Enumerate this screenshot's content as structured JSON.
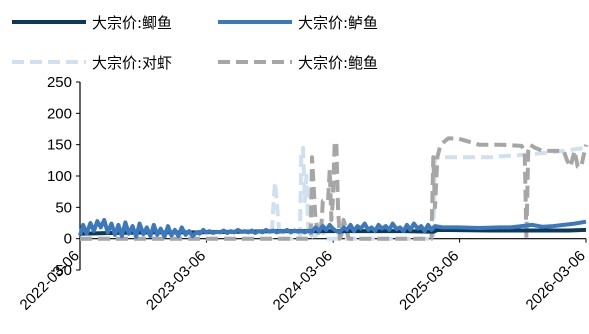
{
  "chart_data": {
    "type": "line",
    "title": "",
    "xlabel": "",
    "ylabel": "",
    "ylim": [
      -50,
      250
    ],
    "yticks": [
      -50,
      0,
      50,
      100,
      150,
      200,
      250
    ],
    "xlim": [
      "2022-03-06",
      "2026-03-06"
    ],
    "xticks": [
      "2022-03-06",
      "2023-03-06",
      "2024-03-06",
      "2025-03-06",
      "2026-03-06"
    ],
    "grid": false,
    "legend_position": "top",
    "series": [
      {
        "name": "大宗价:鲫鱼",
        "color": "#0d3b57",
        "style": "solid",
        "x": [
          "2022-03-06",
          "2022-06-01",
          "2022-10-01",
          "2023-02-01",
          "2023-06-01",
          "2023-10-01",
          "2024-01-15",
          "2024-06-01",
          "2024-10-01",
          "2024-12-20",
          "2025-01-01",
          "2025-06-01",
          "2025-10-01",
          "2026-01-15",
          "2026-03-06"
        ],
        "y": [
          8,
          9,
          10,
          10,
          11,
          12,
          12,
          12,
          12,
          11,
          14,
          13,
          13,
          13,
          14
        ]
      },
      {
        "name": "大宗价:鲈鱼",
        "color": "#3b78be",
        "style": "solid",
        "x": [
          "2022-03-06",
          "2022-03-15",
          "2022-03-25",
          "2022-04-05",
          "2022-04-15",
          "2022-04-25",
          "2022-05-05",
          "2022-05-15",
          "2022-05-25",
          "2022-06-05",
          "2022-06-15",
          "2022-06-25",
          "2022-07-05",
          "2022-07-15",
          "2022-07-25",
          "2022-08-05",
          "2022-08-15",
          "2022-08-25",
          "2022-09-05",
          "2022-09-15",
          "2022-09-25",
          "2022-10-05",
          "2022-10-15",
          "2022-10-25",
          "2022-11-05",
          "2022-11-15",
          "2022-11-25",
          "2022-12-05",
          "2022-12-15",
          "2022-12-25",
          "2023-01-05",
          "2023-01-15",
          "2023-01-25",
          "2023-02-05",
          "2023-02-15",
          "2023-02-25",
          "2023-03-05",
          "2023-03-15",
          "2023-03-25",
          "2023-04-05",
          "2023-04-15",
          "2023-04-25",
          "2023-05-05",
          "2023-05-15",
          "2023-05-25",
          "2023-06-05",
          "2023-06-15",
          "2023-06-25",
          "2023-07-05",
          "2023-07-15",
          "2023-07-25",
          "2023-08-05",
          "2023-08-15",
          "2023-08-25",
          "2023-09-05",
          "2023-09-15",
          "2023-09-25",
          "2023-10-05",
          "2023-10-15",
          "2023-10-25",
          "2023-11-05",
          "2023-11-15",
          "2023-11-25",
          "2023-12-05",
          "2023-12-15",
          "2023-12-25",
          "2024-01-05",
          "2024-01-15",
          "2024-01-25",
          "2024-02-05",
          "2024-02-15",
          "2024-02-25",
          "2024-03-05",
          "2024-03-15",
          "2024-03-25",
          "2024-04-05",
          "2024-04-15",
          "2024-04-25",
          "2024-05-05",
          "2024-05-15",
          "2024-05-25",
          "2024-06-05",
          "2024-06-15",
          "2024-06-25",
          "2024-07-05",
          "2024-07-15",
          "2024-07-25",
          "2024-08-05",
          "2024-08-15",
          "2024-08-25",
          "2024-09-05",
          "2024-09-15",
          "2024-09-25",
          "2024-10-05",
          "2024-10-15",
          "2024-10-25",
          "2024-11-05",
          "2024-11-15",
          "2024-11-25",
          "2024-12-05",
          "2024-12-15",
          "2024-12-25",
          "2025-01-15",
          "2025-03-01",
          "2025-05-01",
          "2025-07-01",
          "2025-08-01",
          "2025-09-01",
          "2025-10-01",
          "2025-11-01",
          "2025-12-01",
          "2026-01-01",
          "2026-02-01",
          "2026-03-06"
        ],
        "y": [
          5,
          22,
          8,
          25,
          12,
          28,
          18,
          30,
          10,
          24,
          6,
          22,
          4,
          26,
          8,
          20,
          3,
          24,
          7,
          18,
          4,
          22,
          6,
          16,
          3,
          20,
          5,
          14,
          4,
          18,
          6,
          12,
          4,
          10,
          8,
          14,
          10,
          12,
          9,
          11,
          10,
          13,
          9,
          12,
          10,
          14,
          11,
          12,
          10,
          13,
          9,
          12,
          10,
          14,
          11,
          13,
          10,
          12,
          11,
          14,
          10,
          13,
          11,
          12,
          10,
          13,
          11,
          18,
          12,
          20,
          14,
          22,
          16,
          12,
          10,
          18,
          14,
          22,
          12,
          20,
          16,
          24,
          14,
          18,
          12,
          22,
          16,
          20,
          14,
          24,
          15,
          18,
          12,
          22,
          14,
          24,
          16,
          20,
          12,
          22,
          14,
          20,
          18,
          18,
          17,
          18,
          18,
          20,
          22,
          19,
          20,
          22,
          24,
          27
        ]
      },
      {
        "name": "大宗价:对虾",
        "color": "#cfe0f0",
        "style": "dash",
        "x": [
          "2022-03-06",
          "2023-06-01",
          "2023-09-10",
          "2023-09-15",
          "2023-09-20",
          "2023-09-25",
          "2023-10-01",
          "2023-10-05",
          "2023-10-10",
          "2023-11-01",
          "2023-12-01",
          "2023-12-05",
          "2023-12-10",
          "2023-12-15",
          "2023-12-20",
          "2023-12-25",
          "2024-01-01",
          "2024-01-10",
          "2024-01-20",
          "2024-02-01",
          "2024-02-10",
          "2024-02-20",
          "2024-03-01",
          "2024-06-01",
          "2024-09-01",
          "2024-12-01",
          "2024-12-20",
          "2024-12-25",
          "2025-01-01",
          "2025-06-01",
          "2025-10-01",
          "2026-01-01",
          "2026-03-06"
        ],
        "y": [
          0,
          0,
          0,
          50,
          90,
          60,
          20,
          0,
          0,
          0,
          0,
          140,
          145,
          60,
          100,
          20,
          0,
          10,
          0,
          30,
          0,
          0,
          0,
          0,
          0,
          0,
          0,
          130,
          130,
          130,
          135,
          140,
          145
        ]
      },
      {
        "name": "大宗价:鲍鱼",
        "color": "#a6a6a6",
        "style": "dash",
        "x": [
          "2022-03-06",
          "2023-09-01",
          "2024-01-01",
          "2024-01-05",
          "2024-01-10",
          "2024-01-15",
          "2024-01-25",
          "2024-02-01",
          "2024-02-05",
          "2024-02-20",
          "2024-02-25",
          "2024-03-01",
          "2024-03-05",
          "2024-03-10",
          "2024-03-15",
          "2024-03-20",
          "2024-03-25",
          "2024-04-01",
          "2024-04-05",
          "2024-04-15",
          "2024-04-20",
          "2024-06-01",
          "2024-10-01",
          "2024-12-15",
          "2024-12-20",
          "2024-12-25",
          "2025-01-01",
          "2025-01-10",
          "2025-02-01",
          "2025-03-01",
          "2025-05-01",
          "2025-07-01",
          "2025-09-01",
          "2025-09-10",
          "2025-09-15",
          "2025-09-20",
          "2025-09-25",
          "2025-10-10",
          "2025-11-01",
          "2025-12-01",
          "2026-01-01",
          "2026-01-10",
          "2026-01-20",
          "2026-02-01",
          "2026-02-10",
          "2026-02-20",
          "2026-03-06"
        ],
        "y": [
          0,
          0,
          0,
          130,
          80,
          30,
          5,
          20,
          60,
          60,
          110,
          30,
          60,
          150,
          155,
          50,
          0,
          10,
          30,
          10,
          0,
          0,
          0,
          0,
          130,
          50,
          130,
          150,
          160,
          160,
          150,
          150,
          148,
          140,
          0,
          140,
          150,
          145,
          140,
          140,
          140,
          125,
          115,
          140,
          115,
          115,
          150
        ]
      }
    ]
  }
}
